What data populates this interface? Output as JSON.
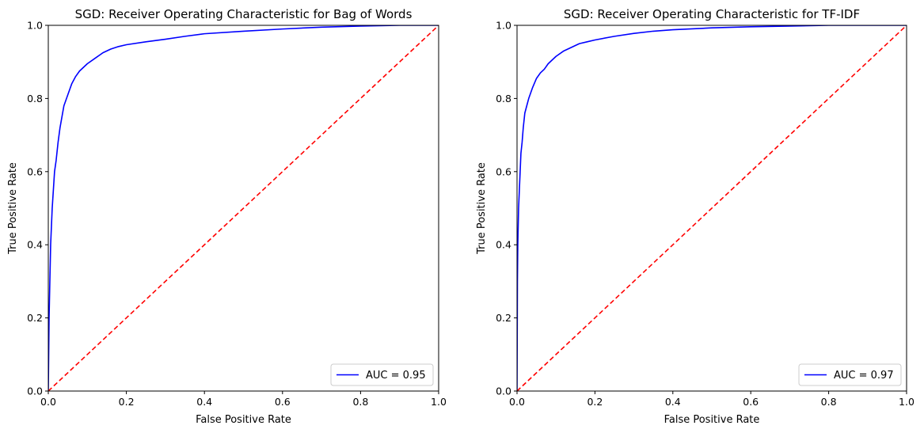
{
  "chart_data": [
    {
      "type": "line",
      "title": "SGD: Receiver Operating Characteristic for Bag of Words",
      "xlabel": "False Positive Rate",
      "ylabel": "True Positive Rate",
      "xlim": [
        0,
        1
      ],
      "ylim": [
        0,
        1
      ],
      "xticks": [
        "0.0",
        "0.2",
        "0.4",
        "0.6",
        "0.8",
        "1.0"
      ],
      "yticks": [
        "0.0",
        "0.2",
        "0.4",
        "0.6",
        "0.8",
        "1.0"
      ],
      "grid": false,
      "legend_position": "lower-right",
      "series": [
        {
          "name": "AUC = 0.95",
          "color": "#0000ff",
          "style": "solid",
          "x": [
            0.0,
            0.002,
            0.004,
            0.006,
            0.008,
            0.01,
            0.013,
            0.016,
            0.02,
            0.025,
            0.03,
            0.035,
            0.04,
            0.05,
            0.06,
            0.07,
            0.08,
            0.09,
            0.1,
            0.12,
            0.14,
            0.16,
            0.18,
            0.2,
            0.25,
            0.3,
            0.35,
            0.4,
            0.5,
            0.6,
            0.7,
            0.8,
            0.9,
            1.0
          ],
          "y": [
            0.0,
            0.2,
            0.3,
            0.4,
            0.45,
            0.5,
            0.55,
            0.6,
            0.63,
            0.68,
            0.72,
            0.75,
            0.78,
            0.81,
            0.84,
            0.86,
            0.875,
            0.885,
            0.895,
            0.91,
            0.925,
            0.935,
            0.942,
            0.947,
            0.955,
            0.962,
            0.97,
            0.977,
            0.984,
            0.99,
            0.995,
            0.998,
            1.0,
            1.0
          ]
        },
        {
          "name": "",
          "color": "#ff0000",
          "style": "dashed",
          "x": [
            0,
            1
          ],
          "y": [
            0,
            1
          ]
        }
      ]
    },
    {
      "type": "line",
      "title": "SGD: Receiver Operating Characteristic for TF-IDF",
      "xlabel": "False Positive Rate",
      "ylabel": "True Positive Rate",
      "xlim": [
        0,
        1
      ],
      "ylim": [
        0,
        1
      ],
      "xticks": [
        "0.0",
        "0.2",
        "0.4",
        "0.6",
        "0.8",
        "1.0"
      ],
      "yticks": [
        "0.0",
        "0.2",
        "0.4",
        "0.6",
        "0.8",
        "1.0"
      ],
      "grid": false,
      "legend_position": "lower-right",
      "series": [
        {
          "name": "AUC = 0.97",
          "color": "#0000ff",
          "style": "solid",
          "x": [
            0.0,
            0.001,
            0.002,
            0.004,
            0.006,
            0.008,
            0.01,
            0.013,
            0.016,
            0.02,
            0.025,
            0.03,
            0.04,
            0.05,
            0.06,
            0.07,
            0.08,
            0.09,
            0.1,
            0.12,
            0.14,
            0.16,
            0.18,
            0.2,
            0.25,
            0.3,
            0.35,
            0.4,
            0.5,
            0.6,
            0.7,
            0.8,
            1.0
          ],
          "y": [
            0.0,
            0.3,
            0.4,
            0.5,
            0.55,
            0.6,
            0.65,
            0.68,
            0.72,
            0.76,
            0.78,
            0.8,
            0.83,
            0.855,
            0.87,
            0.88,
            0.895,
            0.905,
            0.915,
            0.93,
            0.94,
            0.95,
            0.955,
            0.96,
            0.97,
            0.978,
            0.984,
            0.988,
            0.993,
            0.996,
            0.998,
            1.0,
            1.0
          ]
        },
        {
          "name": "",
          "color": "#ff0000",
          "style": "dashed",
          "x": [
            0,
            1
          ],
          "y": [
            0,
            1
          ]
        }
      ]
    }
  ]
}
